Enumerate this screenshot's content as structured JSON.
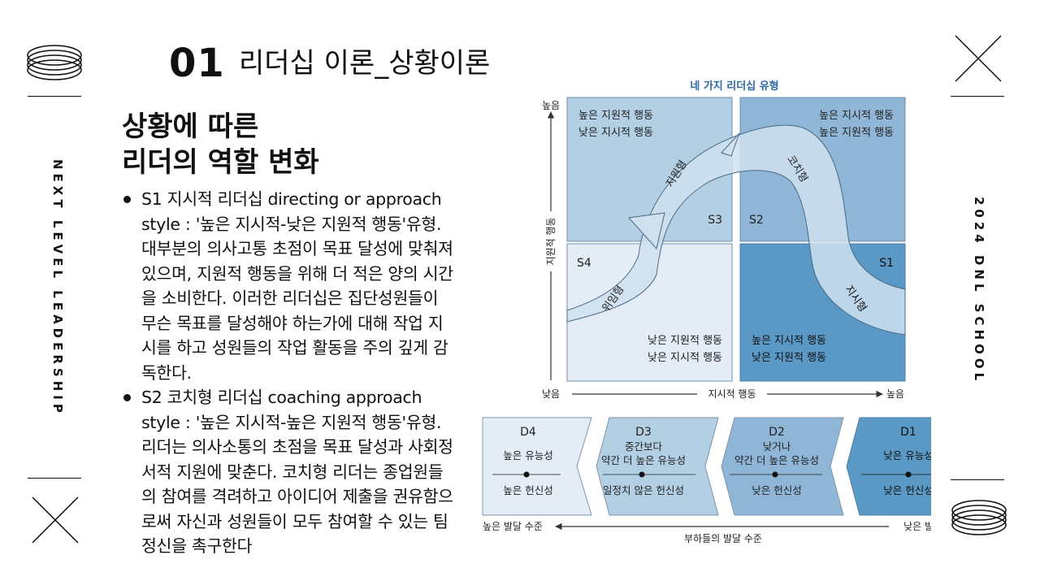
{
  "header": {
    "number": "01",
    "title": "리더십 이론_상황이론"
  },
  "side_left": "NEXT LEVEL LEADERSHIP",
  "side_right": "2024 DNL SCHOOL",
  "heading": {
    "line1": "상황에 따른",
    "line2": "리더의 역할 변화"
  },
  "bullets": [
    "S1 지시적 리더십 directing or approach style : '높은 지시적-낮은 지원적 행동'유형. 대부분의 의사고통 초점이 목표 달성에 맞춰져 있으며, 지원적 행동을 위해 더 적은 양의 시간을 소비한다. 이러한 리더십은 집단성원들이 무슨 목표를 달성해야 하는가에 대해 작업 지시를 하고 성원들의 작업 활동을 주의 깊게 감독한다.",
    "S2 코치형 리더십 coaching approach style : '높은 지시적-높은 지원적 행동'유형. 리더는 의사소통의 초점을 목표 달성과 사회정서적 지원에 맞춘다. 코치형 리더는 종업원들의 참여를 격려하고 아이디어 제출을 권유함으로써 자신과 성원들이 모두 참여할 수 있는 팀 정신을 촉구한다"
  ],
  "diagram": {
    "title": "네 가지 리더십 유형",
    "y_axis": {
      "label": "지원적 행동",
      "high": "높음",
      "low": "낮음"
    },
    "x_axis": {
      "label": "지시적 행동",
      "low": "낮음",
      "high": "높음"
    },
    "quadrants": [
      {
        "code": "S3",
        "line1": "높은 지원적 행동",
        "line2": "낮은 지시적 행동",
        "color": "#b3cfe3"
      },
      {
        "code": "S2",
        "line1": "높은 지시적 행동",
        "line2": "높은 지원적 행동",
        "color": "#8fb6d6"
      },
      {
        "code": "S4",
        "line1": "낮은 지원적 행동",
        "line2": "낮은 지시적 행동",
        "color": "#e4ecf6"
      },
      {
        "code": "S1",
        "line1": "높은 지시적 행동",
        "line2": "낮은 지원적 행동",
        "color": "#5a98c5"
      }
    ],
    "arc_labels": {
      "s1": "지시형",
      "s2": "코치형",
      "s3": "지원형",
      "s4": "위임형"
    },
    "development": {
      "levels": [
        {
          "code": "D4",
          "top": [
            "높은 유능성"
          ],
          "bottom": "높은 헌신성",
          "color": "#e4ecf6"
        },
        {
          "code": "D3",
          "top": [
            "중간보다",
            "약간 더 높은 유능성"
          ],
          "bottom": "일정치 않은 헌신성",
          "color": "#b3cfe3"
        },
        {
          "code": "D2",
          "top": [
            "낮거나",
            "약간 더 높은 유능성"
          ],
          "bottom": "낮은 헌신성",
          "color": "#8fb6d6"
        },
        {
          "code": "D1",
          "top": [
            "낮은 유능성"
          ],
          "bottom": "낮은 헌신성",
          "color": "#5a98c5"
        }
      ],
      "axis_label": "부하들의 발달 수준",
      "left_end": "높은 발달 수준",
      "right_end": "낮은 발달 수준"
    }
  },
  "icons": {
    "top_left": "rings-icon",
    "top_right": "x-icon",
    "bottom_left": "x-icon",
    "bottom_right": "rings-icon"
  }
}
